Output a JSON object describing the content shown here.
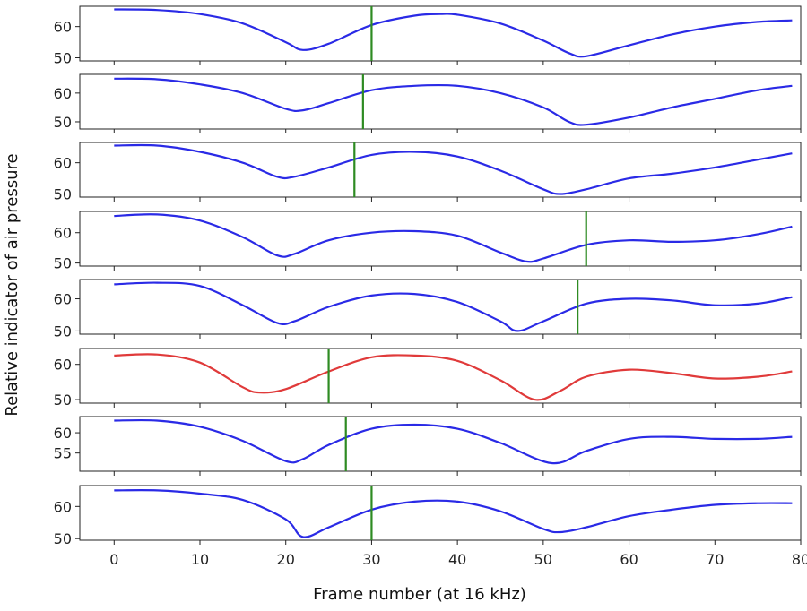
{
  "chart_data": {
    "type": "line",
    "xlabel": "Frame number (at 16 kHz)",
    "ylabel": "Relative indicator of air pressure",
    "xlim": [
      -4,
      80
    ],
    "xticks": [
      0,
      10,
      20,
      30,
      40,
      50,
      60,
      70,
      80
    ],
    "grid": false,
    "legend": "none",
    "panels": [
      {
        "ylim": [
          49,
          66.5
        ],
        "yticks": [
          50,
          60
        ],
        "color": "#2a2ae6",
        "marker_x": 30,
        "x": [
          0,
          5,
          10,
          15,
          20,
          22,
          25,
          30,
          35,
          38,
          40,
          45,
          50,
          53,
          55,
          60,
          65,
          70,
          75,
          79
        ],
        "y": [
          65.5,
          65.3,
          64,
          61,
          55,
          52.5,
          54.5,
          60.5,
          63.5,
          64,
          63.8,
          61,
          55.5,
          51.5,
          50.5,
          54,
          57.5,
          60,
          61.5,
          62
        ]
      },
      {
        "ylim": [
          47.5,
          66.5
        ],
        "yticks": [
          50,
          60
        ],
        "color": "#2a2ae6",
        "marker_x": 29,
        "x": [
          0,
          5,
          10,
          15,
          20,
          22,
          25,
          30,
          35,
          40,
          45,
          50,
          53,
          55,
          60,
          65,
          70,
          75,
          79
        ],
        "y": [
          65,
          64.8,
          63,
          60,
          54.5,
          54,
          56.5,
          61,
          62.5,
          62.5,
          60,
          55,
          50,
          49,
          51.5,
          55,
          58,
          61,
          62.5
        ]
      },
      {
        "ylim": [
          49,
          66.5
        ],
        "yticks": [
          50,
          60
        ],
        "color": "#2a2ae6",
        "marker_x": 28,
        "x": [
          0,
          5,
          10,
          15,
          19,
          21,
          25,
          30,
          35,
          40,
          45,
          50,
          52,
          55,
          60,
          65,
          70,
          75,
          79
        ],
        "y": [
          65.5,
          65.5,
          63.5,
          60,
          55.5,
          55.5,
          58.5,
          62.5,
          63.5,
          62,
          57.5,
          51.5,
          50,
          51.5,
          55,
          56.5,
          58.5,
          61,
          63
        ]
      },
      {
        "ylim": [
          49,
          67
        ],
        "yticks": [
          50,
          60
        ],
        "color": "#2a2ae6",
        "marker_x": 55,
        "x": [
          0,
          5,
          10,
          15,
          19,
          21,
          25,
          30,
          35,
          40,
          45,
          48,
          50,
          55,
          60,
          65,
          70,
          75,
          79
        ],
        "y": [
          65.5,
          66,
          64,
          58.5,
          52.5,
          53,
          57.5,
          60,
          60.5,
          59,
          53.5,
          50.5,
          51.5,
          56,
          57.5,
          57,
          57.5,
          59.5,
          62
        ]
      },
      {
        "ylim": [
          49,
          66
        ],
        "yticks": [
          50,
          60
        ],
        "color": "#2a2ae6",
        "marker_x": 54,
        "x": [
          0,
          5,
          10,
          15,
          19,
          21,
          25,
          30,
          35,
          40,
          45,
          47,
          50,
          55,
          60,
          65,
          70,
          75,
          79
        ],
        "y": [
          64.5,
          65,
          64,
          58,
          52.5,
          53,
          57.5,
          61,
          61.5,
          59,
          53,
          50,
          53,
          58.5,
          60,
          59.5,
          58,
          58.5,
          60.5
        ]
      },
      {
        "ylim": [
          49,
          64.5
        ],
        "yticks": [
          50,
          60
        ],
        "color": "#e03a3a",
        "marker_x": 25,
        "x": [
          0,
          5,
          10,
          15,
          17,
          20,
          25,
          30,
          35,
          40,
          45,
          49,
          52,
          55,
          60,
          65,
          70,
          75,
          79
        ],
        "y": [
          62.5,
          62.8,
          60.5,
          53.5,
          52,
          53,
          58,
          62,
          62.5,
          61,
          55.5,
          50,
          52.5,
          56.5,
          58.5,
          57.5,
          56,
          56.5,
          58
        ]
      },
      {
        "ylim": [
          50.5,
          64
        ],
        "yticks": [
          55,
          60
        ],
        "color": "#2a2ae6",
        "marker_x": 27,
        "x": [
          0,
          5,
          10,
          15,
          20,
          22,
          25,
          30,
          35,
          40,
          45,
          51,
          55,
          60,
          65,
          70,
          75,
          79
        ],
        "y": [
          63,
          63,
          61.5,
          58,
          53,
          53.5,
          57,
          61,
          62,
          61,
          57.5,
          52.5,
          55.5,
          58.5,
          59,
          58.5,
          58.5,
          59
        ]
      },
      {
        "ylim": [
          49.5,
          66.5
        ],
        "yticks": [
          50,
          60
        ],
        "color": "#2a2ae6",
        "marker_x": 30,
        "x": [
          0,
          5,
          10,
          15,
          20,
          22,
          25,
          30,
          35,
          40,
          45,
          50,
          52,
          55,
          60,
          65,
          70,
          75,
          79
        ],
        "y": [
          65,
          65,
          64,
          62,
          56,
          50.5,
          53.5,
          59,
          61.5,
          61.5,
          58.5,
          53,
          52,
          53.5,
          57,
          59,
          60.5,
          61,
          61
        ]
      }
    ]
  }
}
